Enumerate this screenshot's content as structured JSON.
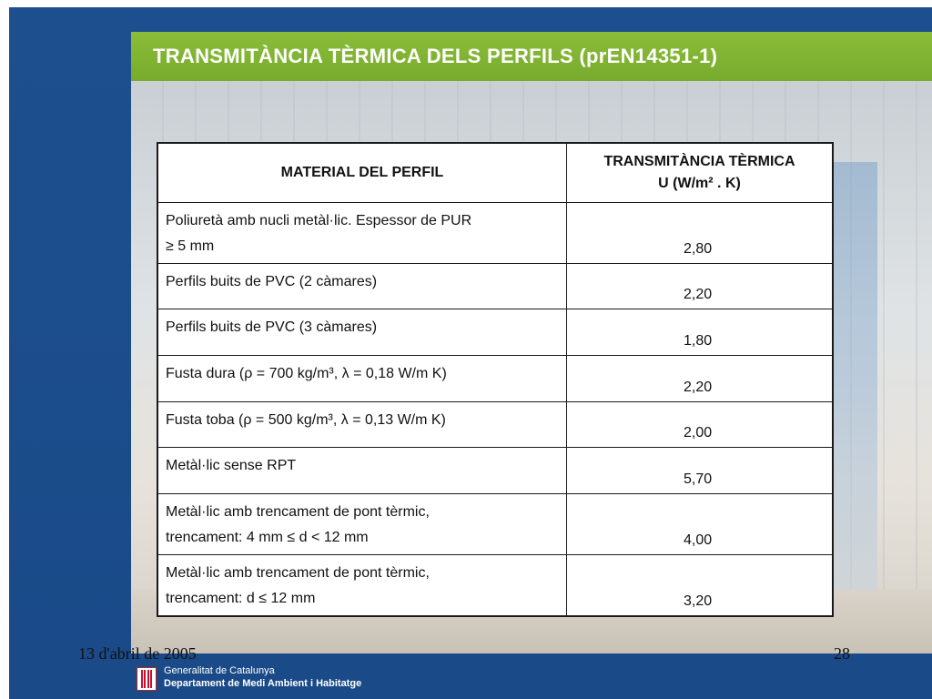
{
  "slide": {
    "title": "TRANSMITÀNCIA TÈRMICA DELS PERFILS (prEN14351-1)",
    "date": "13 d'abril de 2005",
    "page_number": "28"
  },
  "footer": {
    "org_line1": "Generalitat de Catalunya",
    "org_line2": "Departament de Medi Ambient i Habitatge"
  },
  "table": {
    "header_material": "MATERIAL DEL PERFIL",
    "header_transmittance_line1": "TRANSMITÀNCIA TÈRMICA",
    "header_transmittance_line2": "U (W/m² . K)",
    "rows": [
      {
        "material": "Poliuretà amb nucli metàl·lic. Espessor de PUR\n≥ 5 mm",
        "value": "2,80"
      },
      {
        "material": "Perfils buits de PVC (2 càmares)",
        "value": "2,20"
      },
      {
        "material": "Perfils buits de PVC (3 càmares)",
        "value": "1,80"
      },
      {
        "material": "Fusta dura (ρ = 700 kg/m³, λ = 0,18 W/m K)",
        "value": "2,20"
      },
      {
        "material": "Fusta toba (ρ = 500 kg/m³, λ = 0,13 W/m K)",
        "value": "2,00"
      },
      {
        "material": "Metàl·lic sense RPT",
        "value": "5,70"
      },
      {
        "material": "Metàl·lic amb trencament de pont tèrmic,\ntrencament: 4 mm ≤ d < 12 mm",
        "value": "4,00"
      },
      {
        "material": "Metàl·lic amb trencament de pont tèrmic,\ntrencament: d ≤ 12 mm",
        "value": "3,20"
      }
    ]
  },
  "colors": {
    "background_blue": "#1d4f8f",
    "title_green": "#8bbd3a",
    "logo_red": "#c8102e"
  }
}
